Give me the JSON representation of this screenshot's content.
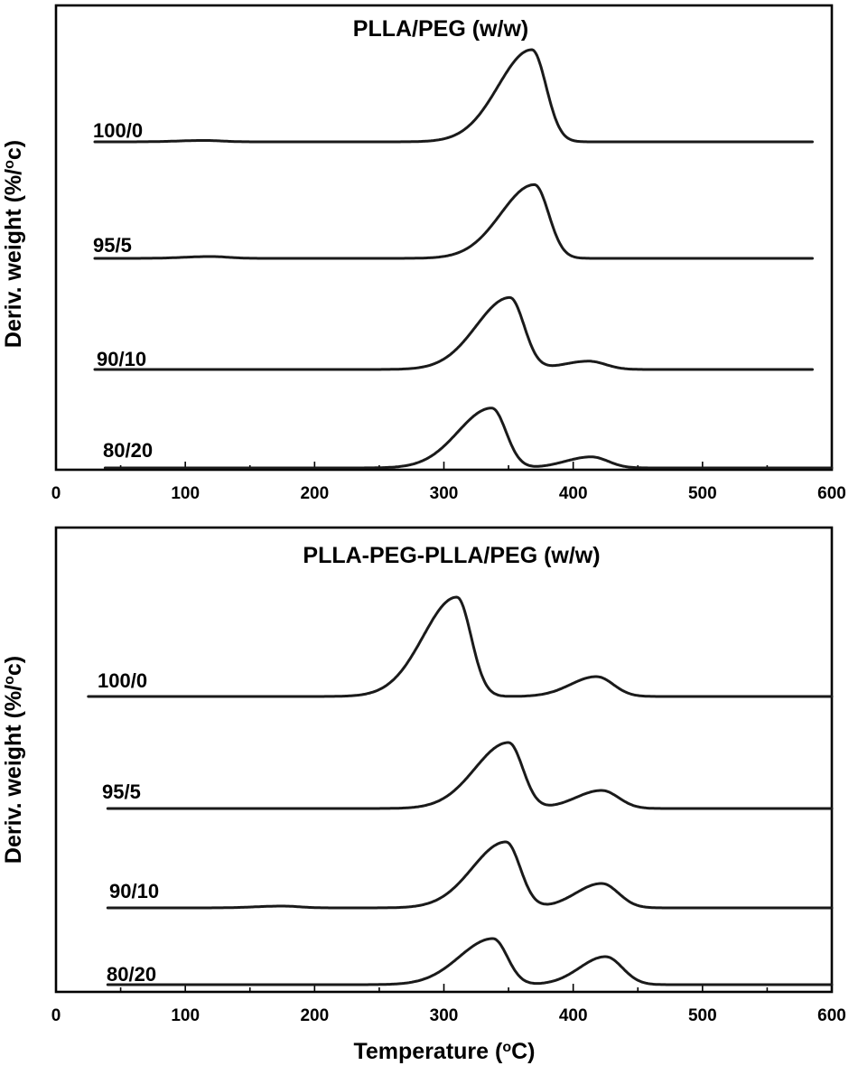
{
  "chart_data": [
    {
      "type": "line",
      "title": "PLLA/PEG (w/w)",
      "xlabel": "",
      "ylabel": "Deriv. weight (%/°c)",
      "xlim": [
        0,
        600
      ],
      "xticks": [
        0,
        100,
        200,
        300,
        400,
        500,
        600
      ],
      "y_ticks_shown": false,
      "series": [
        {
          "name": "100/0",
          "x_range": [
            30,
            585
          ],
          "baseline": 0,
          "peaks": [
            {
              "center": 368,
              "height": 100
            },
            {
              "center": 115,
              "height": 1.5
            }
          ]
        },
        {
          "name": "95/5",
          "x_range": [
            30,
            585
          ],
          "baseline": 0,
          "peaks": [
            {
              "center": 370,
              "height": 80
            },
            {
              "center": 120,
              "height": 2
            }
          ]
        },
        {
          "name": "90/10",
          "x_range": [
            30,
            585
          ],
          "baseline": 0,
          "peaks": [
            {
              "center": 351,
              "height": 78
            },
            {
              "center": 412,
              "height": 9
            }
          ]
        },
        {
          "name": "80/20",
          "x_range": [
            38,
            600
          ],
          "baseline": 0,
          "peaks": [
            {
              "center": 337,
              "height": 65
            },
            {
              "center": 414,
              "height": 12
            }
          ]
        }
      ]
    },
    {
      "type": "line",
      "title": "PLLA-PEG-PLLA/PEG (w/w)",
      "xlabel": "Temperature (°C)",
      "ylabel": "Deriv. weight (%/°c)",
      "xlim": [
        0,
        600
      ],
      "xticks": [
        0,
        100,
        200,
        300,
        400,
        500,
        600
      ],
      "y_ticks_shown": false,
      "series": [
        {
          "name": "100/0",
          "x_range": [
            25,
            600
          ],
          "baseline": 0,
          "peaks": [
            {
              "center": 310,
              "height": 110
            },
            {
              "center": 418,
              "height": 22
            }
          ]
        },
        {
          "name": "95/5",
          "x_range": [
            40,
            600
          ],
          "baseline": 0,
          "peaks": [
            {
              "center": 350,
              "height": 73
            },
            {
              "center": 422,
              "height": 20
            }
          ]
        },
        {
          "name": "90/10",
          "x_range": [
            40,
            600
          ],
          "baseline": 0,
          "peaks": [
            {
              "center": 348,
              "height": 73
            },
            {
              "center": 422,
              "height": 27
            },
            {
              "center": 175,
              "height": 2
            }
          ]
        },
        {
          "name": "80/20",
          "x_range": [
            40,
            600
          ],
          "baseline": 0,
          "peaks": [
            {
              "center": 338,
              "height": 51
            },
            {
              "center": 425,
              "height": 31
            }
          ]
        }
      ]
    }
  ]
}
